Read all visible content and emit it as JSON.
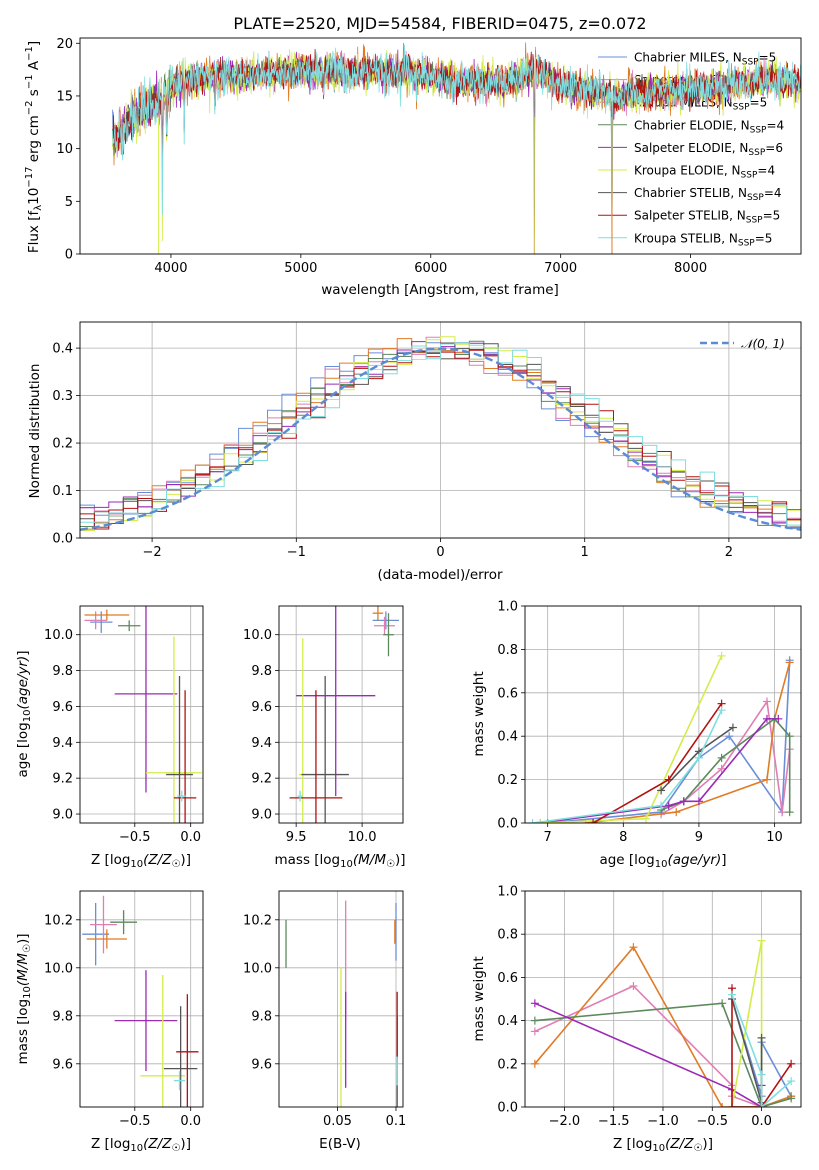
{
  "chart_data": [
    {
      "id": "spectrum",
      "type": "line",
      "title": "PLATE=2520, MJD=54584, FIBERID=0475, z=0.072",
      "xlabel": "wavelength [Angstrom, rest frame]",
      "ylabel": "Flux [f_λ 10^-17 erg cm^-2 s^-1 A^-1]",
      "xlim": [
        3300,
        8850
      ],
      "ylim": [
        0,
        20.5
      ],
      "xticks": [
        4000,
        5000,
        6000,
        7000,
        8000
      ],
      "yticks": [
        0,
        5,
        10,
        15,
        20
      ],
      "grid": false,
      "legend_position": "top-right",
      "series": [
        {
          "name": "Chabrier MILES",
          "nssp": 5,
          "color": "#6a8fd8"
        },
        {
          "name": "Salpeter MILES",
          "nssp": 5,
          "color": "#e07eb4"
        },
        {
          "name": "Kroupa MILES",
          "nssp": 5,
          "color": "#e07b28"
        },
        {
          "name": "Chabrier ELODIE",
          "nssp": 4,
          "color": "#5c8a5c"
        },
        {
          "name": "Salpeter ELODIE",
          "nssp": 6,
          "color": "#9b2ab5"
        },
        {
          "name": "Kroupa ELODIE",
          "nssp": 4,
          "color": "#d4ec4a"
        },
        {
          "name": "Chabrier STELIB",
          "nssp": 4,
          "color": "#555555"
        },
        {
          "name": "Salpeter STELIB",
          "nssp": 5,
          "color": "#b31212"
        },
        {
          "name": "Kroupa STELIB",
          "nssp": 5,
          "color": "#7fdde0"
        }
      ],
      "continuum": {
        "x": [
          3550,
          3700,
          3900,
          4100,
          4300,
          4600,
          5000,
          5400,
          5800,
          6200,
          6600,
          6800,
          7000,
          7400,
          7800,
          8200,
          8600,
          8850
        ],
        "y": [
          10.5,
          13.0,
          14.5,
          16.5,
          16.8,
          17.0,
          17.4,
          17.4,
          17.3,
          16.4,
          16.3,
          17.5,
          16.0,
          15.0,
          15.5,
          15.8,
          16.6,
          16.2
        ]
      },
      "absorption_lines": [
        {
          "wavelength": 3934,
          "depth": 12.0
        },
        {
          "wavelength": 3968,
          "depth": 4.0
        },
        {
          "wavelength": 4102,
          "depth": 4.5
        },
        {
          "wavelength": 4340,
          "depth": 3.5
        },
        {
          "wavelength": 5175,
          "depth": 2.0
        },
        {
          "wavelength": 5890,
          "depth": 2.0
        },
        {
          "wavelength": 6563,
          "depth": 1.5
        },
        {
          "wavelength": 6797,
          "depth": 17.0
        },
        {
          "wavelength": 7395,
          "depth": 15.5
        }
      ]
    },
    {
      "id": "residuals",
      "type": "line",
      "title": "",
      "xlabel": "(data-model)/error",
      "ylabel": "Normed distribution",
      "xlim": [
        -2.5,
        2.5
      ],
      "ylim": [
        0,
        0.455
      ],
      "xticks": [
        -2,
        -1,
        0,
        1,
        2
      ],
      "yticks": [
        0.0,
        0.1,
        0.2,
        0.3,
        0.4
      ],
      "grid": true,
      "legend_position": "top-right",
      "legend": "𝒩(0, 1)",
      "normal_curve": {
        "mu": 0,
        "sigma": 1,
        "color": "#5b8bd6"
      },
      "histogram_bin_width": 0.1
    },
    {
      "id": "age-vs-z",
      "type": "scatter",
      "xlabel": "Z [log10(Z/Z☉)]",
      "ylabel": "age  [log10(age/yr)]",
      "xlim": [
        -0.99,
        0.11
      ],
      "ylim": [
        8.95,
        10.16
      ],
      "xticks": [
        -0.5,
        0.0
      ],
      "yticks": [
        9.0,
        9.2,
        9.4,
        9.6,
        9.8,
        10.0
      ],
      "points": [
        {
          "x": -0.8,
          "xerr": 0.1,
          "y": 10.07,
          "yerr": 0.06,
          "color": "#6a8fd8"
        },
        {
          "x": -0.85,
          "xerr": 0.1,
          "y": 10.08,
          "yerr": 0.05,
          "color": "#e07eb4"
        },
        {
          "x": -0.75,
          "xerr": 0.2,
          "y": 10.11,
          "yerr": 0.03,
          "color": "#e07b28"
        },
        {
          "x": -0.55,
          "xerr": 0.1,
          "y": 10.05,
          "yerr": 0.03,
          "color": "#5c8a5c"
        },
        {
          "x": -0.4,
          "xerr": 0.28,
          "y": 9.67,
          "yerr": 0.55,
          "color": "#9b2ab5"
        },
        {
          "x": -0.15,
          "xerr": 0.25,
          "y": 9.23,
          "yerr": 0.76,
          "color": "#d4ec4a"
        },
        {
          "x": -0.1,
          "xerr": 0.12,
          "y": 9.22,
          "yerr": 0.55,
          "color": "#555555"
        },
        {
          "x": -0.05,
          "xerr": 0.1,
          "y": 9.09,
          "yerr": 0.6,
          "color": "#b31212"
        },
        {
          "x": -0.08,
          "xerr": 0.04,
          "y": 9.1,
          "yerr": 0.03,
          "color": "#7fdde0"
        }
      ]
    },
    {
      "id": "age-vs-mass",
      "type": "scatter",
      "xlabel": "mass [log10(M/M☉)]",
      "ylabel": "",
      "xlim": [
        9.37,
        10.31
      ],
      "ylim": [
        8.95,
        10.16
      ],
      "xticks": [
        9.5,
        10.0
      ],
      "yticks": [
        9.0,
        9.2,
        9.4,
        9.6,
        9.8,
        10.0
      ],
      "points": [
        {
          "x": 10.18,
          "xerr": 0.1,
          "y": 10.08,
          "yerr": 0.05,
          "color": "#6a8fd8"
        },
        {
          "x": 10.17,
          "xerr": 0.08,
          "y": 10.05,
          "yerr": 0.05,
          "color": "#e07eb4"
        },
        {
          "x": 10.12,
          "xerr": 0.04,
          "y": 10.12,
          "yerr": 0.04,
          "color": "#e07b28"
        },
        {
          "x": 10.2,
          "xerr": 0.04,
          "y": 10.0,
          "yerr": 0.12,
          "color": "#5c8a5c"
        },
        {
          "x": 9.8,
          "xerr": 0.3,
          "y": 9.66,
          "yerr": 0.56,
          "color": "#9b2ab5"
        },
        {
          "x": 9.55,
          "xerr": 0.03,
          "y": 9.22,
          "yerr": 0.76,
          "color": "#d4ec4a"
        },
        {
          "x": 9.72,
          "xerr": 0.18,
          "y": 9.22,
          "yerr": 0.55,
          "color": "#555555"
        },
        {
          "x": 9.65,
          "xerr": 0.2,
          "y": 9.09,
          "yerr": 0.6,
          "color": "#b31212"
        },
        {
          "x": 9.53,
          "xerr": 0.02,
          "y": 9.1,
          "yerr": 0.03,
          "color": "#7fdde0"
        }
      ]
    },
    {
      "id": "mass-weight-vs-age",
      "type": "line",
      "xlabel": "age  [log10(age/yr)]",
      "ylabel": "mass weight",
      "xlim": [
        6.7,
        10.35
      ],
      "ylim": [
        0,
        1.0
      ],
      "xticks": [
        7,
        8,
        9,
        10
      ],
      "yticks": [
        0.0,
        0.2,
        0.4,
        0.6,
        0.8,
        1.0
      ],
      "grid": true,
      "series": [
        {
          "color": "#6a8fd8",
          "x": [
            7.0,
            8.5,
            9.0,
            9.4,
            10.1,
            10.2
          ],
          "y": [
            0.0,
            0.05,
            0.3,
            0.4,
            0.05,
            0.75
          ]
        },
        {
          "color": "#e07eb4",
          "x": [
            8.5,
            8.8,
            9.3,
            9.9,
            10.1,
            10.2
          ],
          "y": [
            0.04,
            0.1,
            0.25,
            0.56,
            0.05,
            0.34
          ]
        },
        {
          "color": "#e07b28",
          "x": [
            7.5,
            8.7,
            9.9,
            10.0,
            10.2
          ],
          "y": [
            0.0,
            0.05,
            0.2,
            0.48,
            0.74
          ]
        },
        {
          "color": "#5c8a5c",
          "x": [
            8.5,
            8.8,
            9.3,
            10.0,
            10.2,
            10.2
          ],
          "y": [
            0.06,
            0.1,
            0.3,
            0.48,
            0.4,
            0.05
          ]
        },
        {
          "color": "#9b2ab5",
          "x": [
            6.9,
            8.6,
            8.8,
            9.0,
            9.9,
            10.05
          ],
          "y": [
            0.0,
            0.08,
            0.1,
            0.1,
            0.48,
            0.48
          ]
        },
        {
          "color": "#d4ec4a",
          "x": [
            6.9,
            8.3,
            9.3
          ],
          "y": [
            0.0,
            0.02,
            0.77
          ]
        },
        {
          "color": "#555555",
          "x": [
            8.5,
            9.0,
            9.45
          ],
          "y": [
            0.15,
            0.33,
            0.44
          ]
        },
        {
          "color": "#b31212",
          "x": [
            7.6,
            8.6,
            9.3
          ],
          "y": [
            0.0,
            0.2,
            0.55
          ]
        },
        {
          "color": "#7fdde0",
          "x": [
            6.8,
            8.5,
            9.0,
            9.3
          ],
          "y": [
            0.0,
            0.08,
            0.3,
            0.52
          ]
        }
      ]
    },
    {
      "id": "mass-vs-z",
      "type": "scatter",
      "xlabel": "Z [log10(Z/Z☉)]",
      "ylabel": "mass [log10(M/M☉)]",
      "xlim": [
        -0.99,
        0.11
      ],
      "ylim": [
        9.42,
        10.32
      ],
      "xticks": [
        -0.5,
        0.0
      ],
      "yticks": [
        9.6,
        9.8,
        10.0,
        10.2
      ],
      "points": [
        {
          "x": -0.85,
          "xerr": 0.12,
          "y": 10.14,
          "yerr": 0.13,
          "color": "#6a8fd8"
        },
        {
          "x": -0.78,
          "xerr": 0.12,
          "y": 10.18,
          "yerr": 0.12,
          "color": "#e07eb4"
        },
        {
          "x": -0.75,
          "xerr": 0.18,
          "y": 10.12,
          "yerr": 0.04,
          "color": "#e07b28"
        },
        {
          "x": -0.6,
          "xerr": 0.12,
          "y": 10.19,
          "yerr": 0.05,
          "color": "#5c8a5c"
        },
        {
          "x": -0.4,
          "xerr": 0.28,
          "y": 9.78,
          "yerr": 0.21,
          "color": "#9b2ab5"
        },
        {
          "x": -0.25,
          "xerr": 0.2,
          "y": 9.55,
          "yerr": 0.42,
          "color": "#d4ec4a"
        },
        {
          "x": -0.09,
          "xerr": 0.15,
          "y": 9.58,
          "yerr": 0.26,
          "color": "#555555"
        },
        {
          "x": -0.03,
          "xerr": 0.1,
          "y": 9.65,
          "yerr": 0.24,
          "color": "#b31212"
        },
        {
          "x": -0.1,
          "xerr": 0.05,
          "y": 9.53,
          "yerr": 0.04,
          "color": "#7fdde0"
        }
      ]
    },
    {
      "id": "mass-vs-ebv",
      "type": "scatter",
      "xlabel": "E(B-V)",
      "ylabel": "",
      "xlim": [
        0.0,
        0.106
      ],
      "ylim": [
        9.42,
        10.32
      ],
      "xticks": [
        0.05,
        0.1
      ],
      "yticks": [
        9.6,
        9.8,
        10.0,
        10.2
      ],
      "points": [
        {
          "x": 0.1,
          "xerr": 0.0,
          "y": 10.15,
          "yerr": 0.12,
          "color": "#6a8fd8"
        },
        {
          "x": 0.057,
          "xerr": 0.0,
          "y": 10.03,
          "yerr": 0.25,
          "color": "#e07eb4"
        },
        {
          "x": 0.099,
          "xerr": 0.0,
          "y": 10.15,
          "yerr": 0.05,
          "color": "#e07b28"
        },
        {
          "x": 0.006,
          "xerr": 0.0,
          "y": 10.1,
          "yerr": 0.1,
          "color": "#5c8a5c"
        },
        {
          "x": 0.057,
          "xerr": 0.0,
          "y": 9.7,
          "yerr": 0.2,
          "color": "#9b2ab5"
        },
        {
          "x": 0.053,
          "xerr": 0.0,
          "y": 9.6,
          "yerr": 0.4,
          "color": "#d4ec4a"
        },
        {
          "x": 0.101,
          "xerr": 0.0,
          "y": 9.6,
          "yerr": 0.2,
          "color": "#555555"
        },
        {
          "x": 0.101,
          "xerr": 0.0,
          "y": 9.76,
          "yerr": 0.14,
          "color": "#b31212"
        },
        {
          "x": 0.101,
          "xerr": 0.0,
          "y": 9.57,
          "yerr": 0.06,
          "color": "#7fdde0"
        }
      ]
    },
    {
      "id": "mass-weight-vs-z",
      "type": "line",
      "xlabel": "Z [log10(Z/Z☉)]",
      "ylabel": "mass weight",
      "xlim": [
        -2.4,
        0.4
      ],
      "ylim": [
        0,
        1.0
      ],
      "xticks": [
        -2.0,
        -1.5,
        -1.0,
        -0.5,
        0.0
      ],
      "yticks": [
        0.0,
        0.2,
        0.4,
        0.6,
        0.8,
        1.0
      ],
      "grid": true,
      "series": [
        {
          "color": "#6a8fd8",
          "x": [
            -0.3,
            0.0,
            0.0,
            0.3
          ],
          "y": [
            0.5,
            0.05,
            0.3,
            0.05
          ]
        },
        {
          "color": "#e07eb4",
          "x": [
            -2.3,
            -1.3,
            -0.3,
            -0.3,
            0.0
          ],
          "y": [
            0.35,
            0.56,
            0.1,
            0.05,
            0.0
          ]
        },
        {
          "color": "#e07b28",
          "x": [
            -2.3,
            -1.3,
            -0.4,
            0.0,
            0.3
          ],
          "y": [
            0.2,
            0.74,
            0.0,
            0.0,
            0.05
          ]
        },
        {
          "color": "#5c8a5c",
          "x": [
            -2.3,
            -0.4,
            0.0,
            0.3
          ],
          "y": [
            0.4,
            0.48,
            0.0,
            0.04
          ]
        },
        {
          "color": "#9b2ab5",
          "x": [
            -2.3,
            -0.3,
            0.0,
            0.0
          ],
          "y": [
            0.48,
            0.08,
            0.0,
            0.1
          ]
        },
        {
          "color": "#d4ec4a",
          "x": [
            -0.3,
            0.0,
            0.0
          ],
          "y": [
            0.0,
            0.77,
            0.0
          ]
        },
        {
          "color": "#555555",
          "x": [
            -0.3,
            0.0,
            0.0
          ],
          "y": [
            0.5,
            0.02,
            0.32
          ]
        },
        {
          "color": "#b31212",
          "x": [
            -0.3,
            -0.3,
            0.0,
            0.3
          ],
          "y": [
            0.55,
            0.0,
            0.0,
            0.2
          ]
        },
        {
          "color": "#7fdde0",
          "x": [
            -0.3,
            0.0,
            0.0,
            0.3
          ],
          "y": [
            0.52,
            0.15,
            0.0,
            0.12
          ]
        }
      ]
    }
  ]
}
